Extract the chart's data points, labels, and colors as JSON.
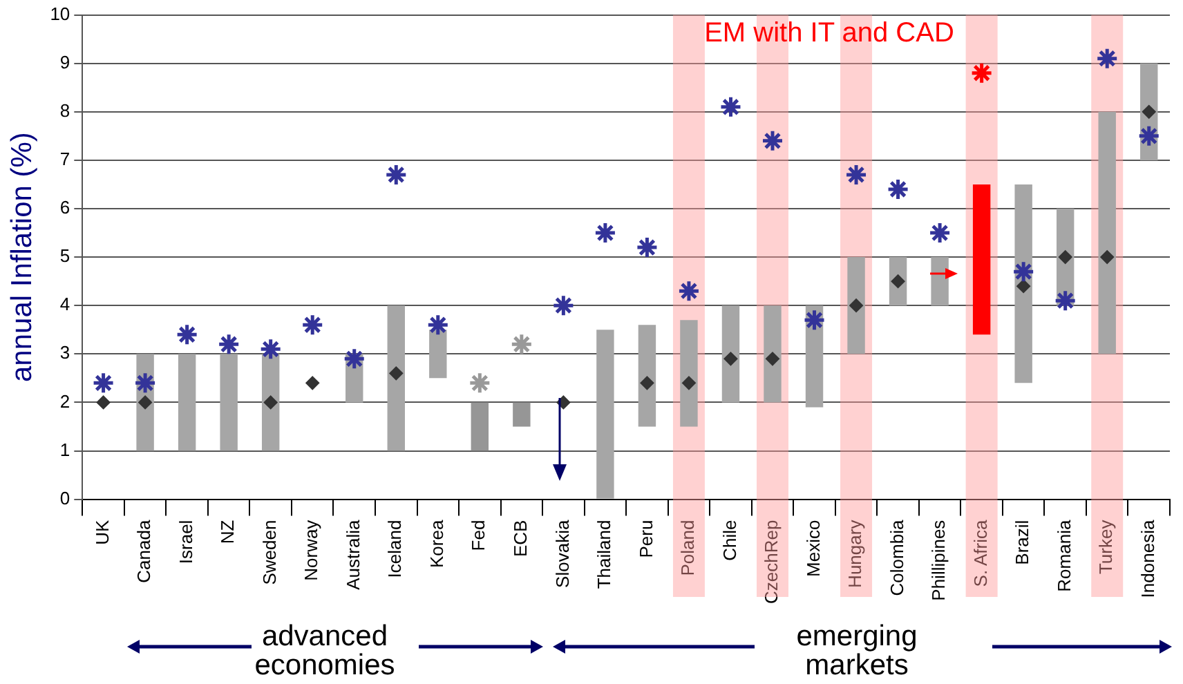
{
  "chart_data": {
    "type": "bar",
    "ylabel": "annual Inflation (%)",
    "categories": [
      "UK",
      "Canada",
      "Israel",
      "NZ",
      "Sweden",
      "Norway",
      "Australia",
      "Iceland",
      "Korea",
      "Fed",
      "ECB",
      "Slovakia",
      "Thailand",
      "Peru",
      "Poland",
      "Chile",
      "CzechRep",
      "Mexico",
      "Hungary",
      "Colombia",
      "Phillipines",
      "S. Africa",
      "Brazil",
      "Romania",
      "Turkey",
      "Indonesia"
    ],
    "series": [
      {
        "colors": [
          "#a6a6a6",
          "#a6a6a6",
          "#a6a6a6",
          "#a6a6a6",
          "#a6a6a6",
          "#a6a6a6",
          "#a6a6a6",
          "#a6a6a6",
          "#a6a6a6",
          "#969696",
          "#969696",
          "#a6a6a6",
          "#a6a6a6",
          "#a6a6a6",
          "#a6a6a6",
          "#a6a6a6",
          "#a6a6a6",
          "#a6a6a6",
          "#a6a6a6",
          "#a6a6a6",
          "#a6a6a6",
          "#ff0000",
          "#a6a6a6",
          "#a6a6a6",
          "#a6a6a6",
          "#a6a6a6"
        ],
        "base": [
          null,
          1,
          1,
          1,
          1,
          null,
          2,
          1,
          2.5,
          1,
          1.5,
          null,
          0,
          1.5,
          1.5,
          2,
          2,
          1.9,
          3,
          4,
          4,
          3.4,
          2.4,
          4,
          3,
          7
        ],
        "values": [
          null,
          2,
          2,
          2,
          2,
          null,
          1,
          3,
          1,
          1,
          0.5,
          null,
          3.5,
          2.1,
          2.2,
          2,
          2,
          2.1,
          2,
          1,
          1,
          3.1,
          4.1,
          2,
          5,
          2
        ]
      },
      {
        "type": "scatter",
        "marker": "diamond",
        "color": "#333333",
        "values": [
          2,
          2,
          null,
          null,
          2,
          2.4,
          null,
          2.6,
          null,
          null,
          null,
          2,
          null,
          2.4,
          2.4,
          2.9,
          2.9,
          null,
          4,
          4.5,
          null,
          null,
          4.4,
          5,
          5,
          8
        ]
      },
      {
        "type": "scatter",
        "marker": "cross",
        "colors": [
          "#333399",
          "#333399",
          "#333399",
          "#333399",
          "#333399",
          "#333399",
          "#333399",
          "#333399",
          "#333399",
          "#999999",
          "#999999",
          "#333399",
          "#333399",
          "#333399",
          "#333399",
          "#333399",
          "#333399",
          "#333399",
          "#333399",
          "#333399",
          "#333399",
          "#ff0000",
          "#333399",
          "#333399",
          "#333399",
          "#333399"
        ],
        "values": [
          2.4,
          2.4,
          3.4,
          3.2,
          3.1,
          3.6,
          2.9,
          6.7,
          3.6,
          2.4,
          3.2,
          4.0,
          5.5,
          5.2,
          4.3,
          8.1,
          7.4,
          3.7,
          6.7,
          6.4,
          5.5,
          8.8,
          4.7,
          4.1,
          9.1,
          7.5
        ]
      }
    ],
    "bands": [
      {
        "axis": "x",
        "from": "Poland",
        "to": "Poland",
        "color": "#ff9999"
      },
      {
        "axis": "x",
        "from": "CzechRep",
        "to": "CzechRep",
        "color": "#ff9999"
      },
      {
        "axis": "x",
        "from": "Hungary",
        "to": "Hungary",
        "color": "#ff9999"
      },
      {
        "axis": "x",
        "from": "S. Africa",
        "to": "S. Africa",
        "color": "#ff9999"
      },
      {
        "axis": "x",
        "from": "Turkey",
        "to": "Turkey",
        "color": "#ff9999"
      }
    ],
    "annotations": [
      "EM with IT and CAD",
      "advanced economies",
      "emerging markets"
    ],
    "ylim": [
      0,
      10
    ],
    "yticks": [
      0,
      1,
      2,
      3,
      4,
      5,
      6,
      7,
      8,
      9,
      10
    ],
    "grid": "y",
    "legend": false
  }
}
